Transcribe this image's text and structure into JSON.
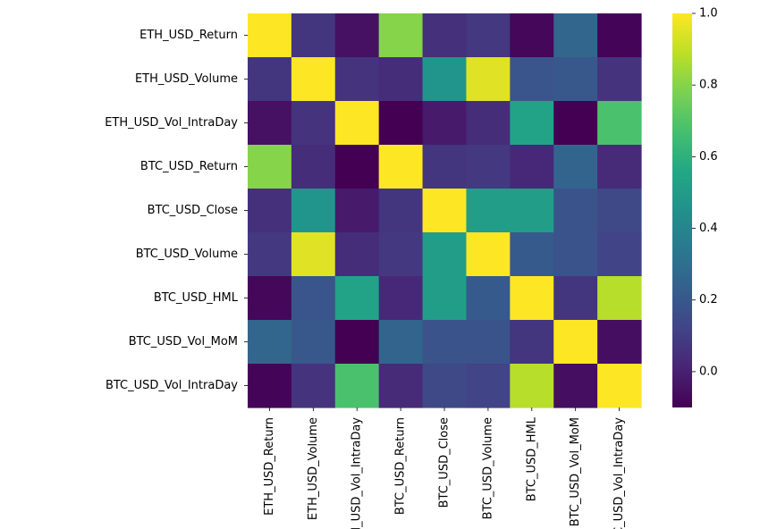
{
  "chart_data": {
    "type": "heatmap",
    "colormap": "viridis",
    "row_labels": [
      "ETH_USD_Return",
      "ETH_USD_Volume",
      "ETH_USD_Vol_IntraDay",
      "BTC_USD_Return",
      "BTC_USD_Close",
      "BTC_USD_Volume",
      "BTC_USD_HML",
      "BTC_USD_Vol_MoM",
      "BTC_USD_Vol_IntraDay"
    ],
    "col_labels": [
      "ETH_USD_Return",
      "ETH_USD_Volume",
      "ETH_USD_Vol_IntraDay",
      "BTC_USD_Return",
      "BTC_USD_Close",
      "BTC_USD_Volume",
      "BTC_USD_HML",
      "BTC_USD_Vol_MoM",
      "BTC_USD_Vol_IntraDay"
    ],
    "values": [
      [
        1.0,
        0.07,
        -0.05,
        0.8,
        0.05,
        0.08,
        -0.08,
        0.26,
        -0.09
      ],
      [
        0.07,
        1.0,
        0.06,
        0.04,
        0.47,
        0.95,
        0.19,
        0.2,
        0.06
      ],
      [
        -0.05,
        0.06,
        1.0,
        -0.1,
        -0.02,
        0.04,
        0.53,
        -0.1,
        0.68
      ],
      [
        0.8,
        0.04,
        -0.1,
        1.0,
        0.07,
        0.08,
        0.02,
        0.25,
        0.03
      ],
      [
        0.05,
        0.47,
        -0.02,
        0.07,
        1.0,
        0.51,
        0.51,
        0.18,
        0.14
      ],
      [
        0.08,
        0.95,
        0.04,
        0.08,
        0.51,
        1.0,
        0.21,
        0.18,
        0.12
      ],
      [
        -0.08,
        0.19,
        0.53,
        0.02,
        0.51,
        0.21,
        1.0,
        0.07,
        0.88
      ],
      [
        0.26,
        0.2,
        -0.1,
        0.25,
        0.18,
        0.18,
        0.07,
        1.0,
        -0.06
      ],
      [
        -0.09,
        0.06,
        0.68,
        0.03,
        0.14,
        0.12,
        0.88,
        -0.06,
        1.0
      ]
    ],
    "vmin": -0.1,
    "vmax": 1.0,
    "colorbar": {
      "ticks": [
        0.0,
        0.2,
        0.4,
        0.6,
        0.8,
        1.0
      ],
      "tick_labels": [
        "0.0",
        "0.2",
        "0.4",
        "0.6",
        "0.8",
        "1.0"
      ]
    }
  }
}
